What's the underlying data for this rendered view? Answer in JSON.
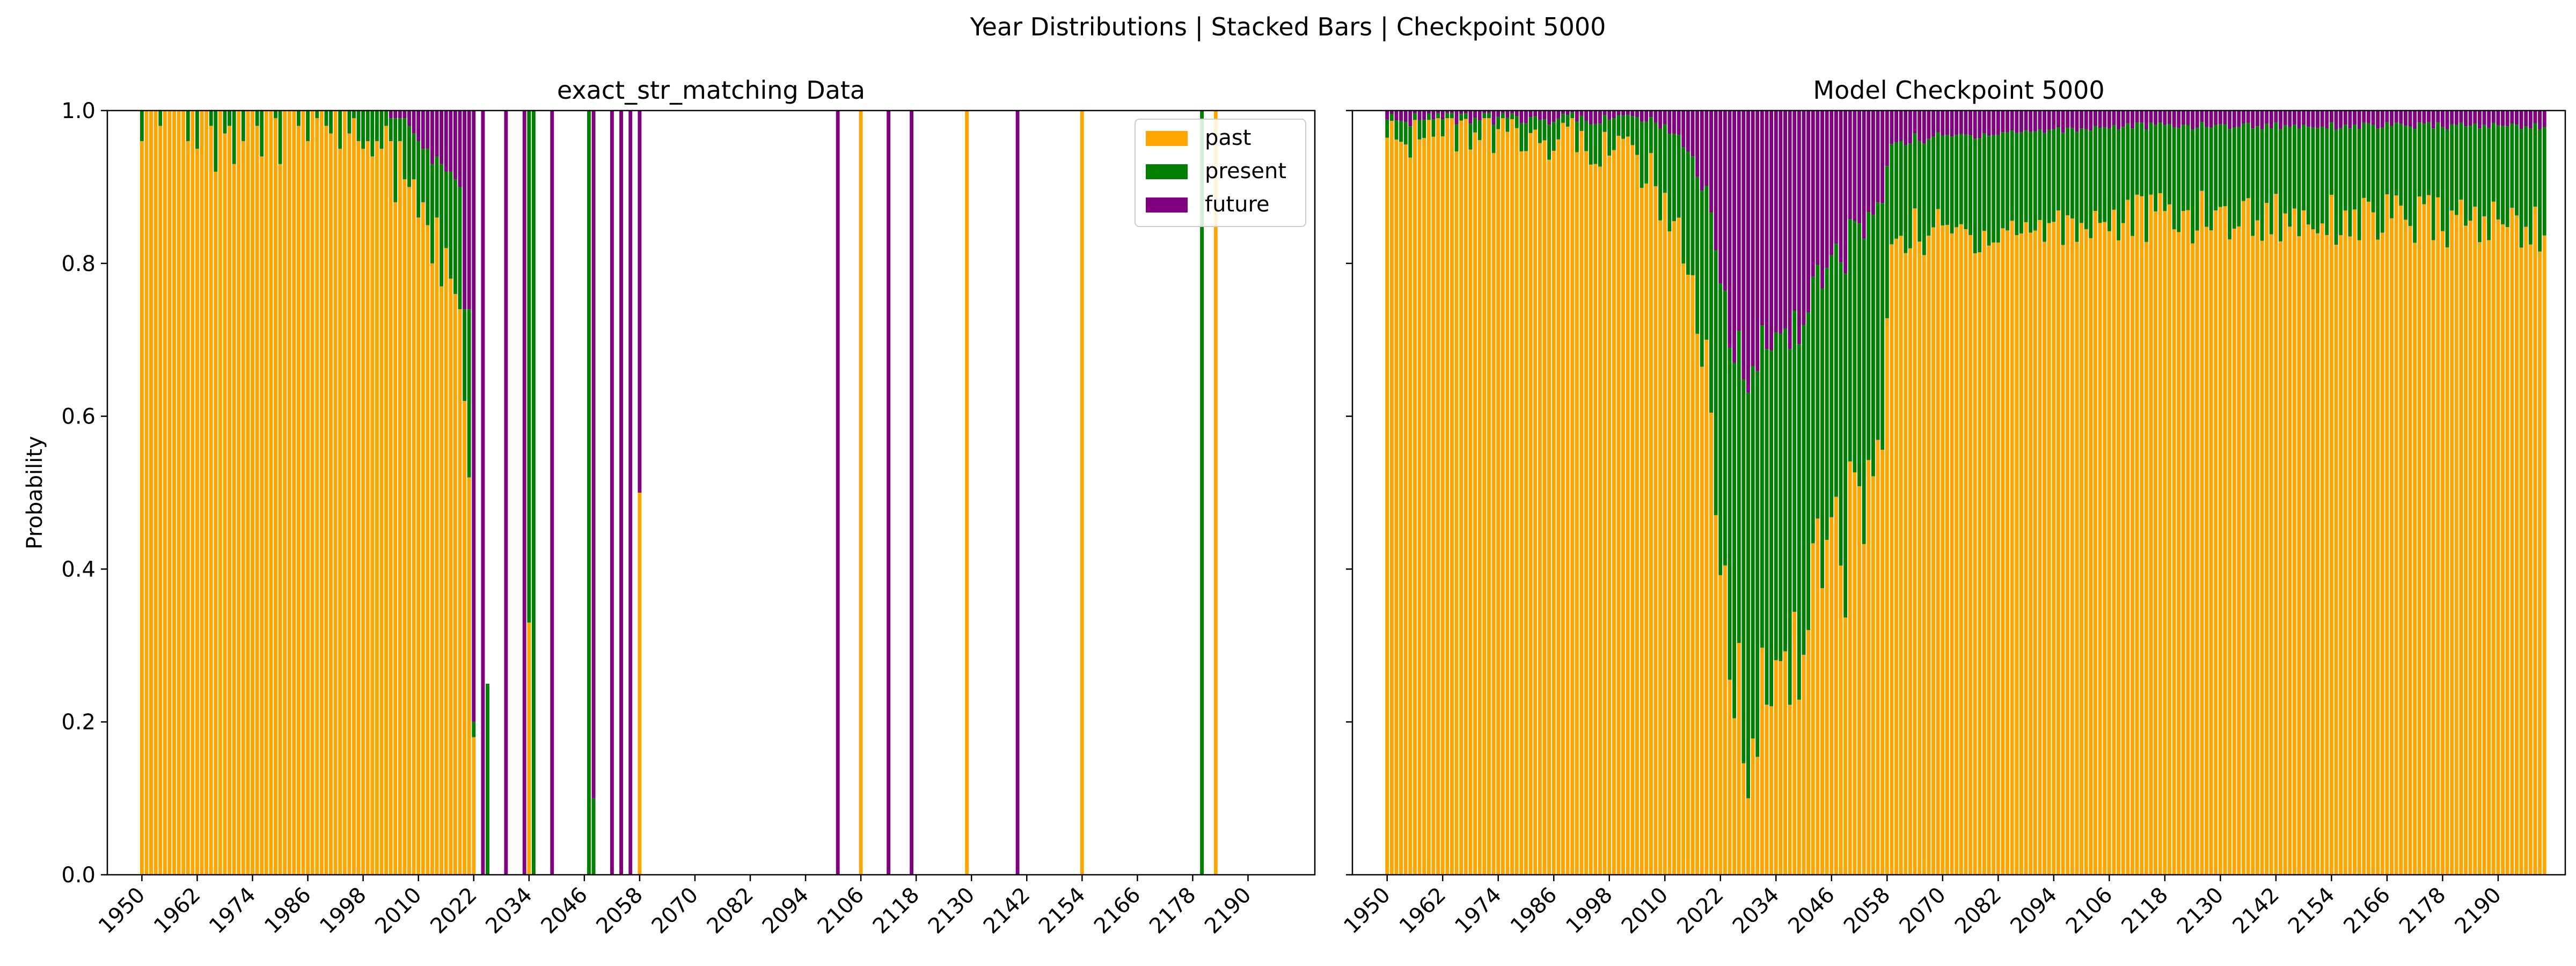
{
  "figure": {
    "suptitle": "Year Distributions | Stacked Bars | Checkpoint 5000"
  },
  "colors": {
    "past": "#FFA500",
    "present": "#008000",
    "future": "#800080"
  },
  "chart_data": [
    {
      "type": "bar",
      "stacked": true,
      "title": "exact_str_matching Data",
      "xlabel": "",
      "ylabel": "Probability",
      "ylim": [
        0,
        1.0
      ],
      "yticks": [
        "0.0",
        "0.2",
        "0.4",
        "0.6",
        "0.8",
        "1.0"
      ],
      "xticks": [
        "1950",
        "1962",
        "1974",
        "1986",
        "1998",
        "2010",
        "2022",
        "2034",
        "2046",
        "2058",
        "2070",
        "2082",
        "2094",
        "2106",
        "2118",
        "2130",
        "2142",
        "2154",
        "2166",
        "2178",
        "2190"
      ],
      "xrange": [
        1950,
        2200
      ],
      "legend": {
        "placement": "top-right",
        "entries": [
          "past",
          "present",
          "future"
        ]
      },
      "bars": [
        {
          "x": 1950,
          "past": 0.96,
          "present": 0.04,
          "future": 0
        },
        {
          "x": 1951,
          "past": 1,
          "present": 0,
          "future": 0
        },
        {
          "x": 1952,
          "past": 1,
          "present": 0,
          "future": 0
        },
        {
          "x": 1953,
          "past": 1,
          "present": 0,
          "future": 0
        },
        {
          "x": 1954,
          "past": 0.98,
          "present": 0.02,
          "future": 0
        },
        {
          "x": 1955,
          "past": 1,
          "present": 0,
          "future": 0
        },
        {
          "x": 1956,
          "past": 1,
          "present": 0,
          "future": 0
        },
        {
          "x": 1957,
          "past": 1,
          "present": 0,
          "future": 0
        },
        {
          "x": 1958,
          "past": 1,
          "present": 0,
          "future": 0
        },
        {
          "x": 1959,
          "past": 1,
          "present": 0,
          "future": 0
        },
        {
          "x": 1960,
          "past": 0.96,
          "present": 0.04,
          "future": 0
        },
        {
          "x": 1961,
          "past": 1,
          "present": 0,
          "future": 0
        },
        {
          "x": 1962,
          "past": 0.95,
          "present": 0.05,
          "future": 0
        },
        {
          "x": 1963,
          "past": 1,
          "present": 0,
          "future": 0
        },
        {
          "x": 1964,
          "past": 1,
          "present": 0,
          "future": 0
        },
        {
          "x": 1965,
          "past": 0.98,
          "present": 0.02,
          "future": 0
        },
        {
          "x": 1966,
          "past": 0.92,
          "present": 0.08,
          "future": 0
        },
        {
          "x": 1967,
          "past": 1,
          "present": 0,
          "future": 0
        },
        {
          "x": 1968,
          "past": 0.97,
          "present": 0.03,
          "future": 0
        },
        {
          "x": 1969,
          "past": 0.98,
          "present": 0.02,
          "future": 0
        },
        {
          "x": 1970,
          "past": 0.93,
          "present": 0.07,
          "future": 0
        },
        {
          "x": 1971,
          "past": 1,
          "present": 0,
          "future": 0
        },
        {
          "x": 1972,
          "past": 0.96,
          "present": 0.04,
          "future": 0
        },
        {
          "x": 1973,
          "past": 1,
          "present": 0,
          "future": 0
        },
        {
          "x": 1974,
          "past": 1,
          "present": 0,
          "future": 0
        },
        {
          "x": 1975,
          "past": 0.98,
          "present": 0.02,
          "future": 0
        },
        {
          "x": 1976,
          "past": 0.94,
          "present": 0.06,
          "future": 0
        },
        {
          "x": 1977,
          "past": 1,
          "present": 0,
          "future": 0
        },
        {
          "x": 1978,
          "past": 1,
          "present": 0,
          "future": 0
        },
        {
          "x": 1979,
          "past": 0.99,
          "present": 0.01,
          "future": 0
        },
        {
          "x": 1980,
          "past": 0.93,
          "present": 0.07,
          "future": 0
        },
        {
          "x": 1981,
          "past": 1,
          "present": 0,
          "future": 0
        },
        {
          "x": 1982,
          "past": 1,
          "present": 0,
          "future": 0
        },
        {
          "x": 1983,
          "past": 1,
          "present": 0,
          "future": 0
        },
        {
          "x": 1984,
          "past": 0.98,
          "present": 0.02,
          "future": 0
        },
        {
          "x": 1985,
          "past": 1,
          "present": 0,
          "future": 0
        },
        {
          "x": 1986,
          "past": 0.96,
          "present": 0.04,
          "future": 0
        },
        {
          "x": 1987,
          "past": 1,
          "present": 0,
          "future": 0
        },
        {
          "x": 1988,
          "past": 0.99,
          "present": 0.01,
          "future": 0
        },
        {
          "x": 1989,
          "past": 1,
          "present": 0,
          "future": 0
        },
        {
          "x": 1990,
          "past": 0.98,
          "present": 0.02,
          "future": 0
        },
        {
          "x": 1991,
          "past": 0.97,
          "present": 0.03,
          "future": 0
        },
        {
          "x": 1992,
          "past": 1,
          "present": 0,
          "future": 0
        },
        {
          "x": 1993,
          "past": 0.95,
          "present": 0.05,
          "future": 0
        },
        {
          "x": 1994,
          "past": 1,
          "present": 0,
          "future": 0
        },
        {
          "x": 1995,
          "past": 0.97,
          "present": 0.03,
          "future": 0
        },
        {
          "x": 1996,
          "past": 0.99,
          "present": 0.01,
          "future": 0
        },
        {
          "x": 1997,
          "past": 0.96,
          "present": 0.04,
          "future": 0
        },
        {
          "x": 1998,
          "past": 0.95,
          "present": 0.05,
          "future": 0
        },
        {
          "x": 1999,
          "past": 0.96,
          "present": 0.04,
          "future": 0
        },
        {
          "x": 2000,
          "past": 0.94,
          "present": 0.06,
          "future": 0
        },
        {
          "x": 2001,
          "past": 0.96,
          "present": 0.04,
          "future": 0
        },
        {
          "x": 2002,
          "past": 0.95,
          "present": 0.05,
          "future": 0
        },
        {
          "x": 2003,
          "past": 0.98,
          "present": 0.02,
          "future": 0
        },
        {
          "x": 2004,
          "past": 0.96,
          "present": 0.03,
          "future": 0.01
        },
        {
          "x": 2005,
          "past": 0.88,
          "present": 0.11,
          "future": 0.01
        },
        {
          "x": 2006,
          "past": 0.96,
          "present": 0.03,
          "future": 0.01
        },
        {
          "x": 2007,
          "past": 0.91,
          "present": 0.08,
          "future": 0.01
        },
        {
          "x": 2008,
          "past": 0.9,
          "present": 0.08,
          "future": 0.02
        },
        {
          "x": 2009,
          "past": 0.91,
          "present": 0.06,
          "future": 0.03
        },
        {
          "x": 2010,
          "past": 0.86,
          "present": 0.1,
          "future": 0.04
        },
        {
          "x": 2011,
          "past": 0.88,
          "present": 0.07,
          "future": 0.05
        },
        {
          "x": 2012,
          "past": 0.85,
          "present": 0.1,
          "future": 0.05
        },
        {
          "x": 2013,
          "past": 0.8,
          "present": 0.13,
          "future": 0.07
        },
        {
          "x": 2014,
          "past": 0.86,
          "present": 0.08,
          "future": 0.06
        },
        {
          "x": 2015,
          "past": 0.77,
          "present": 0.16,
          "future": 0.07
        },
        {
          "x": 2016,
          "past": 0.82,
          "present": 0.1,
          "future": 0.08
        },
        {
          "x": 2017,
          "past": 0.78,
          "present": 0.14,
          "future": 0.08
        },
        {
          "x": 2018,
          "past": 0.76,
          "present": 0.15,
          "future": 0.09
        },
        {
          "x": 2019,
          "past": 0.74,
          "present": 0.16,
          "future": 0.1
        },
        {
          "x": 2020,
          "past": 0.62,
          "present": 0.12,
          "future": 0.26
        },
        {
          "x": 2021,
          "past": 0.52,
          "present": 0.22,
          "future": 0.26
        },
        {
          "x": 2022,
          "past": 0.18,
          "present": 0.02,
          "future": 0.8
        },
        {
          "x": 2024,
          "past": 0,
          "present": 0,
          "future": 1.0
        },
        {
          "x": 2025,
          "past": 0,
          "present": 0.25,
          "future": 0
        },
        {
          "x": 2029,
          "past": 0,
          "present": 0,
          "future": 1.0
        },
        {
          "x": 2033,
          "past": 0,
          "present": 0,
          "future": 1.0
        },
        {
          "x": 2034,
          "past": 0.33,
          "present": 0.67,
          "future": 0
        },
        {
          "x": 2035,
          "past": 0,
          "present": 1.0,
          "future": 0
        },
        {
          "x": 2039,
          "past": 0,
          "present": 0,
          "future": 1.0
        },
        {
          "x": 2047,
          "past": 0,
          "present": 1.0,
          "future": 0
        },
        {
          "x": 2048,
          "past": 0,
          "present": 0.1,
          "future": 0.9
        },
        {
          "x": 2052,
          "past": 0,
          "present": 0,
          "future": 1.0
        },
        {
          "x": 2054,
          "past": 0,
          "present": 0,
          "future": 1.0
        },
        {
          "x": 2056,
          "past": 0,
          "present": 0,
          "future": 1.0
        },
        {
          "x": 2058,
          "past": 0.5,
          "present": 0,
          "future": 0.5
        },
        {
          "x": 2101,
          "past": 0,
          "present": 0,
          "future": 1.0
        },
        {
          "x": 2106,
          "past": 1.0,
          "present": 0,
          "future": 0
        },
        {
          "x": 2112,
          "past": 0,
          "present": 0,
          "future": 1.0
        },
        {
          "x": 2117,
          "past": 0,
          "present": 0,
          "future": 1.0
        },
        {
          "x": 2129,
          "past": 1.0,
          "present": 0,
          "future": 0
        },
        {
          "x": 2140,
          "past": 0,
          "present": 0,
          "future": 1.0
        },
        {
          "x": 2154,
          "past": 1.0,
          "present": 0,
          "future": 0
        },
        {
          "x": 2180,
          "past": 0,
          "present": 1.0,
          "future": 0
        },
        {
          "x": 2183,
          "past": 1.0,
          "present": 0,
          "future": 0
        }
      ]
    },
    {
      "type": "bar",
      "stacked": true,
      "title": "Model Checkpoint 5000",
      "xlabel": "",
      "ylabel": "",
      "ylim": [
        0,
        1.0
      ],
      "yticks": [
        "0.0",
        "0.2",
        "0.4",
        "0.6",
        "0.8",
        "1.0"
      ],
      "show_ytick_labels": false,
      "xticks": [
        "1950",
        "1962",
        "1974",
        "1986",
        "1998",
        "2010",
        "2022",
        "2034",
        "2046",
        "2058",
        "2070",
        "2082",
        "2094",
        "2106",
        "2118",
        "2130",
        "2142",
        "2154",
        "2166",
        "2178",
        "2190"
      ],
      "xrange": [
        1950,
        2200
      ],
      "keypoints": [
        {
          "x": 1950,
          "past": 0.97,
          "present": 0.02,
          "future": 0.01
        },
        {
          "x": 1975,
          "past": 0.97,
          "present": 0.02,
          "future": 0.01
        },
        {
          "x": 1995,
          "past": 0.96,
          "present": 0.03,
          "future": 0.01
        },
        {
          "x": 2005,
          "past": 0.93,
          "present": 0.06,
          "future": 0.01
        },
        {
          "x": 2010,
          "past": 0.88,
          "present": 0.1,
          "future": 0.02
        },
        {
          "x": 2015,
          "past": 0.8,
          "present": 0.15,
          "future": 0.05
        },
        {
          "x": 2018,
          "past": 0.68,
          "present": 0.22,
          "future": 0.1
        },
        {
          "x": 2021,
          "past": 0.42,
          "present": 0.38,
          "future": 0.2
        },
        {
          "x": 2024,
          "past": 0.28,
          "present": 0.42,
          "future": 0.3
        },
        {
          "x": 2028,
          "past": 0.22,
          "present": 0.46,
          "future": 0.32
        },
        {
          "x": 2031,
          "past": 0.2,
          "present": 0.48,
          "future": 0.32
        },
        {
          "x": 2035,
          "past": 0.26,
          "present": 0.44,
          "future": 0.3
        },
        {
          "x": 2040,
          "past": 0.34,
          "present": 0.4,
          "future": 0.26
        },
        {
          "x": 2045,
          "past": 0.4,
          "present": 0.38,
          "future": 0.22
        },
        {
          "x": 2050,
          "past": 0.45,
          "present": 0.38,
          "future": 0.17
        },
        {
          "x": 2057,
          "past": 0.56,
          "present": 0.32,
          "future": 0.12
        },
        {
          "x": 2059,
          "past": 0.84,
          "present": 0.12,
          "future": 0.04
        },
        {
          "x": 2080,
          "past": 0.84,
          "present": 0.13,
          "future": 0.03
        },
        {
          "x": 2110,
          "past": 0.86,
          "present": 0.12,
          "future": 0.02
        },
        {
          "x": 2150,
          "past": 0.86,
          "present": 0.12,
          "future": 0.02
        },
        {
          "x": 2200,
          "past": 0.85,
          "present": 0.13,
          "future": 0.02
        }
      ]
    }
  ]
}
